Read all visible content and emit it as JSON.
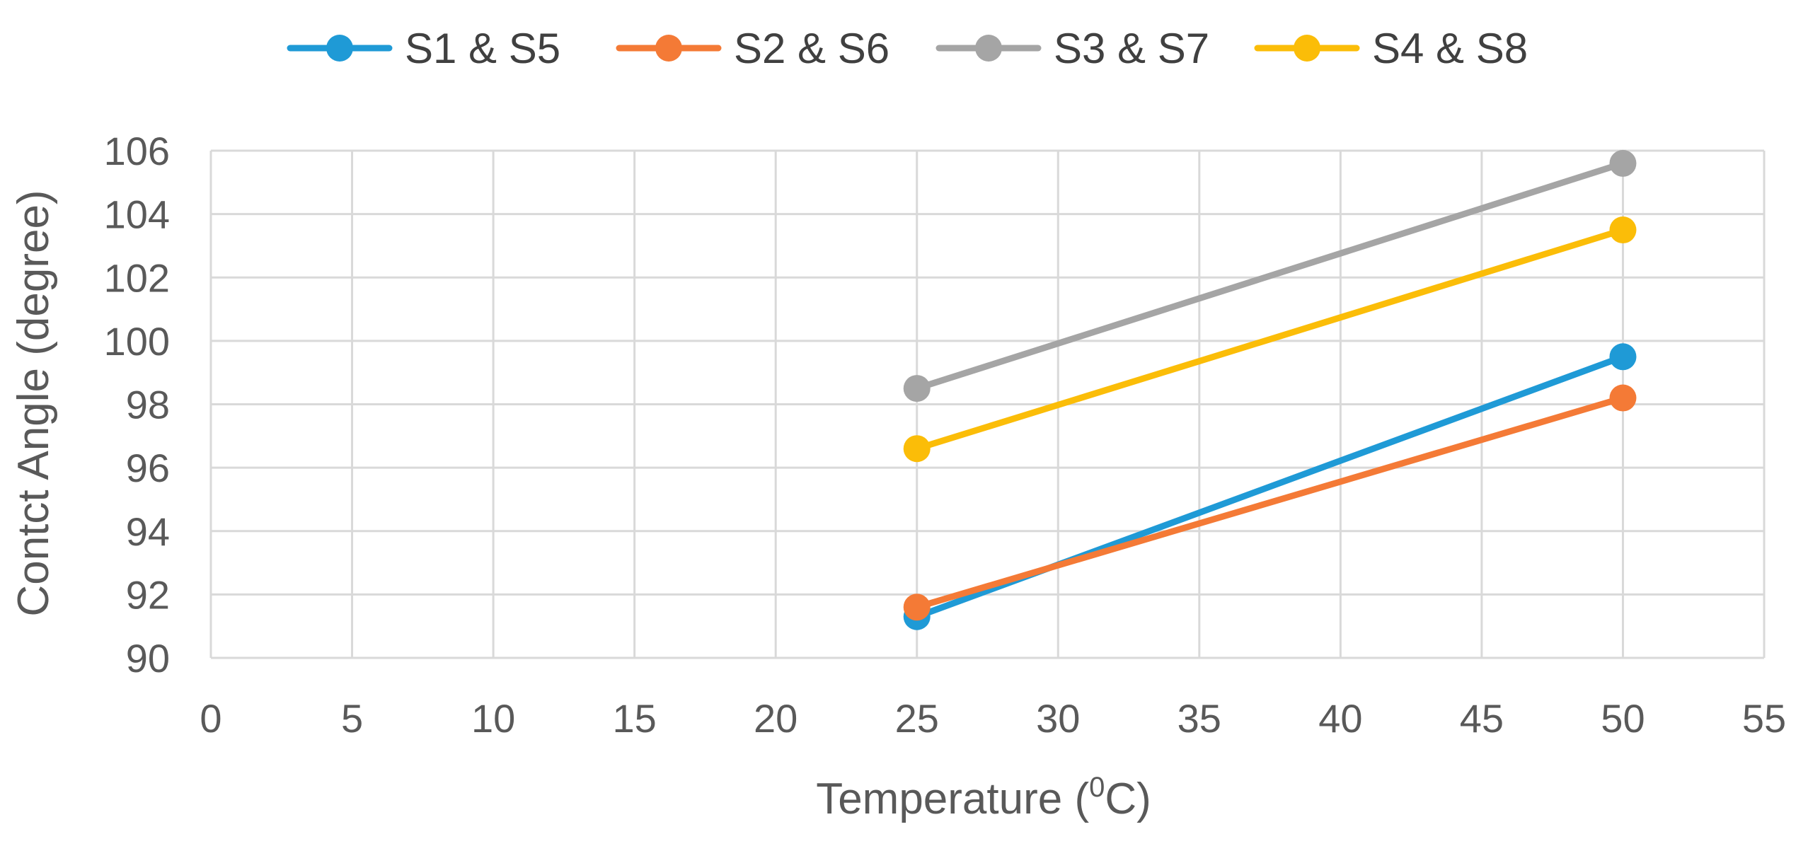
{
  "chart_data": {
    "type": "line",
    "title": "",
    "xlabel": "Temperature (",
    "xlabel_sup": "0",
    "xlabel_unit": "C)",
    "ylabel": "Contct Angle (degree)",
    "xlim": [
      0,
      55
    ],
    "ylim": [
      90,
      106
    ],
    "xticks": [
      0,
      5,
      10,
      15,
      20,
      25,
      30,
      35,
      40,
      45,
      50,
      55
    ],
    "yticks": [
      90,
      92,
      94,
      96,
      98,
      100,
      102,
      104,
      106
    ],
    "grid": true,
    "legend_position": "top",
    "x": [
      25,
      50
    ],
    "series": [
      {
        "name": "S1 &  S5",
        "color": "#1f9ad6",
        "values": [
          91.3,
          99.5
        ]
      },
      {
        "name": "S2 & S6",
        "color": "#f47a36",
        "values": [
          91.6,
          98.2
        ]
      },
      {
        "name": "S3 & S7",
        "color": "#a5a5a5",
        "values": [
          98.5,
          105.6
        ]
      },
      {
        "name": "S4 & S8",
        "color": "#fbbd08",
        "values": [
          96.6,
          103.5
        ]
      }
    ]
  }
}
